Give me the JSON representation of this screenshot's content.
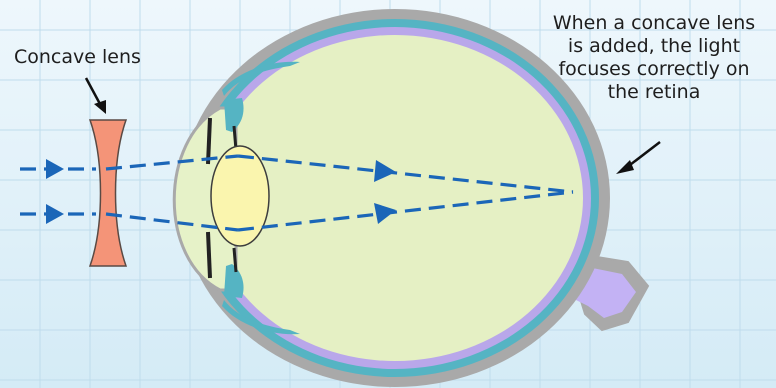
{
  "labels": {
    "lens": "Concave lens",
    "note": "When a concave lens is added, the light focuses correctly on the retina"
  },
  "colors": {
    "background_top": "#eef7fc",
    "background_bottom": "#d4ebf6",
    "grid": "#bfdcec",
    "sclera": "#a9a9a9",
    "choroid": "#55b4c3",
    "retina": "#b9a7ea",
    "vitreous": "#e5f0c4",
    "cornea": "#e6f2c8",
    "crystalline_lens": "#faf5ae",
    "concave_lens": "#f49478",
    "optic_nerve": "#c3b2f4",
    "light_ray": "#1b66b8",
    "pointer": "#111111"
  },
  "icons": {
    "ray_arrow": "arrowhead-icon",
    "pointer_arrow": "pointer-arrow-icon"
  }
}
